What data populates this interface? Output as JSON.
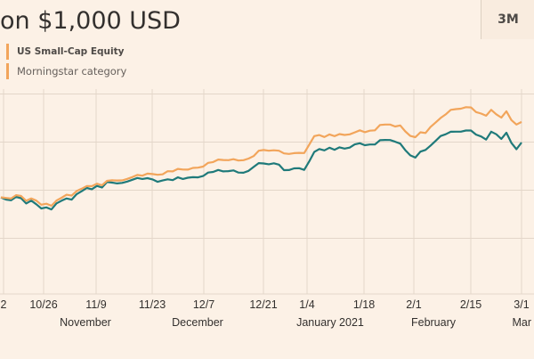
{
  "title": "on $1,000 USD",
  "range_button": "3M",
  "colors": {
    "primary": "#f2a55b",
    "secondary": "#1f7a7a",
    "grid": "#e3d6c9",
    "background": "#fcf1e6"
  },
  "chart_data": {
    "type": "line",
    "title": "on $1,000 USD",
    "xlabel": "",
    "ylabel": "",
    "ylim": [
      820,
      1220
    ],
    "gridlines": [
      1160,
      1080,
      1000,
      920
    ],
    "x_tick_labels": [
      "2",
      "10/26",
      "11/9",
      "11/23",
      "12/7",
      "12/21",
      "1/4",
      "1/18",
      "2/1",
      "2/15",
      "3/1"
    ],
    "month_labels": [
      "November",
      "December",
      "January 2021",
      "February",
      "Mar"
    ],
    "legend": [
      "US Small-Cap Equity",
      "Morningstar category"
    ],
    "series": [
      {
        "name": "US Small-Cap Equity",
        "color": "#f2a55b",
        "points": [
          [
            0,
            988.2
          ],
          [
            1,
            987.1
          ],
          [
            2,
            986.1
          ],
          [
            3,
            991.7
          ],
          [
            4,
            990.3
          ],
          [
            5,
            982.4
          ],
          [
            6,
            986.2
          ],
          [
            7,
            982.7
          ],
          [
            8,
            975.8
          ],
          [
            9,
            977.5
          ],
          [
            10,
            974.1
          ],
          [
            11,
            982.8
          ],
          [
            12,
            987.4
          ],
          [
            13,
            992.4
          ],
          [
            14,
            990.9
          ],
          [
            15,
            998.6
          ],
          [
            16,
            1002.5
          ],
          [
            17,
            1006.9
          ],
          [
            18,
            1006.7
          ],
          [
            19,
            1010.8
          ],
          [
            20,
            1008.2
          ],
          [
            21,
            1015.6
          ],
          [
            22,
            1016.5
          ],
          [
            23,
            1016.1
          ],
          [
            24,
            1016.3
          ],
          [
            25,
            1018.8
          ],
          [
            26,
            1021.8
          ],
          [
            27,
            1025.4
          ],
          [
            28,
            1024.2
          ],
          [
            29,
            1027.5
          ],
          [
            30,
            1026.8
          ],
          [
            31,
            1025.7
          ],
          [
            32,
            1026.3
          ],
          [
            33,
            1031.6
          ],
          [
            34,
            1031.3
          ],
          [
            35,
            1035.4
          ],
          [
            36,
            1034.3
          ],
          [
            37,
            1034.2
          ],
          [
            38,
            1037.1
          ],
          [
            39,
            1037.5
          ],
          [
            40,
            1039.3
          ],
          [
            41,
            1045.5
          ],
          [
            42,
            1046.8
          ],
          [
            43,
            1051.0
          ],
          [
            44,
            1050.2
          ],
          [
            45,
            1050.0
          ],
          [
            46,
            1051.5
          ],
          [
            47,
            1049.3
          ],
          [
            48,
            1049.9
          ],
          [
            49,
            1052.6
          ],
          [
            50,
            1056.8
          ],
          [
            51,
            1065.6
          ],
          [
            52,
            1066.8
          ],
          [
            53,
            1065.6
          ],
          [
            54,
            1066.4
          ],
          [
            55,
            1065.7
          ],
          [
            56,
            1061.2
          ],
          [
            57,
            1060.3
          ],
          [
            58,
            1061.7
          ],
          [
            59,
            1062.1
          ],
          [
            60,
            1061.8
          ],
          [
            61,
            1075.8
          ],
          [
            62,
            1090.0
          ],
          [
            63,
            1091.7
          ],
          [
            64,
            1088.5
          ],
          [
            65,
            1092.7
          ],
          [
            66,
            1089.9
          ],
          [
            67,
            1093.3
          ],
          [
            68,
            1091.8
          ],
          [
            69,
            1092.9
          ],
          [
            70,
            1096.2
          ],
          [
            71,
            1099.6
          ],
          [
            72,
            1096.5
          ],
          [
            73,
            1098.9
          ],
          [
            74,
            1099.6
          ],
          [
            75,
            1108.4
          ],
          [
            76,
            1109.2
          ],
          [
            77,
            1109.2
          ],
          [
            78,
            1106.0
          ],
          [
            79,
            1107.7
          ],
          [
            80,
            1097.8
          ],
          [
            81,
            1090.2
          ],
          [
            82,
            1088.1
          ],
          [
            83,
            1096.3
          ],
          [
            84,
            1095.1
          ],
          [
            85,
            1105.3
          ],
          [
            86,
            1112.5
          ],
          [
            87,
            1120.1
          ],
          [
            88,
            1126.1
          ],
          [
            89,
            1133.7
          ],
          [
            90,
            1134.8
          ],
          [
            91,
            1135.5
          ],
          [
            92,
            1138.0
          ],
          [
            93,
            1137.7
          ],
          [
            94,
            1130.0
          ],
          [
            95,
            1127.4
          ],
          [
            96,
            1123.9
          ],
          [
            97,
            1133.6
          ],
          [
            98,
            1126.2
          ],
          [
            99,
            1120.8
          ],
          [
            100,
            1131.2
          ],
          [
            101,
            1116.6
          ],
          [
            102,
            1109.2
          ],
          [
            103,
            1113.5
          ]
        ]
      },
      {
        "name": "Morningstar category",
        "color": "#1f7a7a",
        "points": [
          [
            0,
            988.0
          ],
          [
            1,
            984.5
          ],
          [
            2,
            983.3
          ],
          [
            3,
            988.8
          ],
          [
            4,
            986.7
          ],
          [
            5,
            977.9
          ],
          [
            6,
            982.7
          ],
          [
            7,
            976.6
          ],
          [
            8,
            969.6
          ],
          [
            9,
            971.4
          ],
          [
            10,
            968.0
          ],
          [
            11,
            978.1
          ],
          [
            12,
            982.5
          ],
          [
            13,
            986.2
          ],
          [
            14,
            984.3
          ],
          [
            15,
            993.5
          ],
          [
            16,
            998.3
          ],
          [
            17,
            1003.7
          ],
          [
            18,
            1001.6
          ],
          [
            19,
            1007.1
          ],
          [
            20,
            1004.5
          ],
          [
            21,
            1013.7
          ],
          [
            22,
            1012.6
          ],
          [
            23,
            1011.2
          ],
          [
            24,
            1012.2
          ],
          [
            25,
            1014.4
          ],
          [
            26,
            1017.3
          ],
          [
            27,
            1020.3
          ],
          [
            28,
            1018.7
          ],
          [
            29,
            1020.0
          ],
          [
            30,
            1017.9
          ],
          [
            31,
            1013.9
          ],
          [
            32,
            1016.1
          ],
          [
            33,
            1018.0
          ],
          [
            34,
            1016.7
          ],
          [
            35,
            1021.4
          ],
          [
            36,
            1018.7
          ],
          [
            37,
            1020.8
          ],
          [
            38,
            1021.7
          ],
          [
            39,
            1021.4
          ],
          [
            40,
            1023.6
          ],
          [
            41,
            1029.3
          ],
          [
            42,
            1030.3
          ],
          [
            43,
            1033.7
          ],
          [
            44,
            1031.3
          ],
          [
            45,
            1031.7
          ],
          [
            46,
            1032.9
          ],
          [
            47,
            1029.3
          ],
          [
            48,
            1029.1
          ],
          [
            49,
            1032.2
          ],
          [
            50,
            1038.6
          ],
          [
            51,
            1045.1
          ],
          [
            52,
            1044.5
          ],
          [
            53,
            1043.1
          ],
          [
            54,
            1044.7
          ],
          [
            55,
            1042.5
          ],
          [
            56,
            1033.3
          ],
          [
            57,
            1033.5
          ],
          [
            58,
            1036.3
          ],
          [
            59,
            1036.6
          ],
          [
            60,
            1033.8
          ],
          [
            61,
            1048.0
          ],
          [
            62,
            1063.5
          ],
          [
            63,
            1068.5
          ],
          [
            64,
            1066.2
          ],
          [
            65,
            1070.6
          ],
          [
            66,
            1067.2
          ],
          [
            67,
            1071.3
          ],
          [
            68,
            1069.2
          ],
          [
            69,
            1070.8
          ],
          [
            70,
            1076.1
          ],
          [
            71,
            1078.0
          ],
          [
            72,
            1074.8
          ],
          [
            73,
            1076.0
          ],
          [
            74,
            1076.0
          ],
          [
            75,
            1083.1
          ],
          [
            76,
            1083.6
          ],
          [
            77,
            1083.4
          ],
          [
            78,
            1080.6
          ],
          [
            79,
            1077.5
          ],
          [
            80,
            1066.5
          ],
          [
            81,
            1057.9
          ],
          [
            82,
            1054.2
          ],
          [
            83,
            1064.2
          ],
          [
            84,
            1067.0
          ],
          [
            85,
            1074.2
          ],
          [
            86,
            1082.0
          ],
          [
            87,
            1090.1
          ],
          [
            88,
            1093.0
          ],
          [
            89,
            1097.2
          ],
          [
            90,
            1097.4
          ],
          [
            91,
            1097.4
          ],
          [
            92,
            1099.3
          ],
          [
            93,
            1099.3
          ],
          [
            94,
            1092.5
          ],
          [
            95,
            1089.4
          ],
          [
            96,
            1084.2
          ],
          [
            97,
            1097.4
          ],
          [
            98,
            1093.1
          ],
          [
            99,
            1085.3
          ],
          [
            100,
            1095.6
          ],
          [
            101,
            1078.7
          ],
          [
            102,
            1068.1
          ],
          [
            103,
            1079.2
          ]
        ]
      }
    ]
  }
}
